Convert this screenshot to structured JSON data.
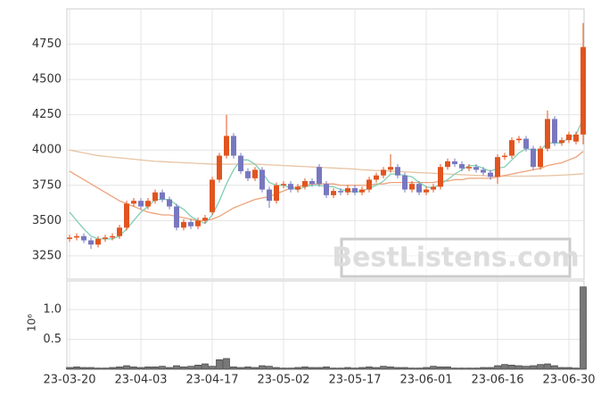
{
  "chart_data": [
    {
      "type": "candlestick",
      "watermark": "BestListens.com",
      "up_color": "#e2541f",
      "down_color": "#7878c0",
      "xlim": [
        -0.375,
        72.125
      ],
      "ylim": [
        3085,
        5000
      ],
      "yticks": [
        3250,
        3500,
        3750,
        4000,
        4250,
        4500,
        4750
      ],
      "grid": true,
      "open": [
        3370,
        3380,
        3390,
        3360,
        3330,
        3370,
        3380,
        3390,
        3450,
        3620,
        3640,
        3600,
        3640,
        3700,
        3650,
        3600,
        3450,
        3490,
        3460,
        3500,
        3560,
        3790,
        3960,
        4100,
        3960,
        3850,
        3800,
        3860,
        3720,
        3640,
        3750,
        3760,
        3720,
        3740,
        3780,
        3880,
        3760,
        3680,
        3710,
        3700,
        3730,
        3700,
        3720,
        3790,
        3820,
        3860,
        3880,
        3820,
        3720,
        3760,
        3700,
        3720,
        3740,
        3880,
        3920,
        3900,
        3870,
        3880,
        3860,
        3840,
        3810,
        3950,
        3960,
        4070,
        4080,
        4010,
        3880,
        4010,
        4220,
        4050,
        4070,
        4060,
        4110
      ],
      "high": [
        3400,
        3410,
        3410,
        3380,
        3390,
        3400,
        3410,
        3470,
        3640,
        3660,
        3660,
        3660,
        3720,
        3720,
        3670,
        3620,
        3510,
        3510,
        3520,
        3540,
        3810,
        3980,
        4250,
        4120,
        3980,
        3870,
        3880,
        3880,
        3740,
        3770,
        3780,
        3780,
        3760,
        3800,
        3800,
        3900,
        3780,
        3730,
        3730,
        3750,
        3750,
        3740,
        3810,
        3840,
        3880,
        3970,
        3900,
        3840,
        3780,
        3780,
        3740,
        3760,
        3900,
        3940,
        3940,
        3920,
        3900,
        3900,
        3880,
        3860,
        3970,
        3980,
        4090,
        4100,
        4100,
        4030,
        4030,
        4280,
        4240,
        4090,
        4130,
        4130,
        4900
      ],
      "low": [
        3350,
        3360,
        3340,
        3300,
        3310,
        3350,
        3360,
        3370,
        3430,
        3600,
        3580,
        3580,
        3620,
        3630,
        3580,
        3430,
        3430,
        3440,
        3440,
        3480,
        3540,
        3770,
        3940,
        3940,
        3830,
        3780,
        3780,
        3700,
        3590,
        3620,
        3730,
        3700,
        3700,
        3720,
        3740,
        3740,
        3660,
        3660,
        3680,
        3680,
        3680,
        3680,
        3700,
        3770,
        3800,
        3840,
        3800,
        3700,
        3700,
        3680,
        3680,
        3700,
        3720,
        3860,
        3880,
        3850,
        3850,
        3840,
        3820,
        3790,
        3760,
        3930,
        3940,
        4050,
        3990,
        3860,
        3860,
        3990,
        4030,
        4030,
        4050,
        4040,
        4040
      ],
      "close": [
        3380,
        3390,
        3360,
        3330,
        3370,
        3380,
        3390,
        3450,
        3620,
        3640,
        3600,
        3640,
        3700,
        3650,
        3600,
        3450,
        3490,
        3460,
        3500,
        3520,
        3790,
        3960,
        4100,
        3960,
        3850,
        3800,
        3860,
        3720,
        3640,
        3750,
        3760,
        3720,
        3740,
        3780,
        3760,
        3760,
        3680,
        3710,
        3700,
        3730,
        3700,
        3720,
        3790,
        3820,
        3860,
        3880,
        3820,
        3720,
        3760,
        3700,
        3720,
        3740,
        3880,
        3920,
        3900,
        3870,
        3880,
        3860,
        3840,
        3810,
        3950,
        3960,
        4070,
        4080,
        4010,
        3880,
        4010,
        4220,
        4050,
        4070,
        4110,
        4110,
        4730
      ],
      "series": [
        {
          "color": "#e8c4a4",
          "values": [
            4000,
            3990,
            3980,
            3970,
            3960,
            3955,
            3950,
            3945,
            3940,
            3935,
            3930,
            3925,
            3920,
            3918,
            3915,
            3913,
            3910,
            3908,
            3905,
            3903,
            3900,
            3900,
            3900,
            3900,
            3900,
            3900,
            3900,
            3898,
            3895,
            3893,
            3890,
            3888,
            3885,
            3883,
            3880,
            3878,
            3875,
            3873,
            3870,
            3868,
            3865,
            3860,
            3858,
            3855,
            3853,
            3850,
            3848,
            3845,
            3843,
            3840,
            3838,
            3835,
            3833,
            3830,
            3828,
            3825,
            3823,
            3820,
            3818,
            3816,
            3815,
            3815,
            3815,
            3815,
            3815,
            3816,
            3817,
            3818,
            3820,
            3822,
            3825,
            3828,
            3832
          ]
        },
        {
          "color": "#eea27a",
          "values": [
            3850,
            3820,
            3790,
            3760,
            3730,
            3700,
            3670,
            3640,
            3620,
            3600,
            3580,
            3560,
            3550,
            3540,
            3540,
            3530,
            3520,
            3510,
            3500,
            3500,
            3510,
            3530,
            3560,
            3590,
            3610,
            3630,
            3650,
            3660,
            3670,
            3690,
            3710,
            3730,
            3740,
            3750,
            3760,
            3760,
            3760,
            3760,
            3750,
            3750,
            3750,
            3750,
            3750,
            3760,
            3760,
            3770,
            3770,
            3770,
            3770,
            3770,
            3770,
            3770,
            3780,
            3780,
            3790,
            3790,
            3800,
            3800,
            3800,
            3800,
            3810,
            3820,
            3830,
            3840,
            3850,
            3860,
            3870,
            3890,
            3900,
            3910,
            3930,
            3950,
            3990
          ]
        },
        {
          "color": "#7fcfb4",
          "values": [
            3560,
            3500,
            3440,
            3390,
            3370,
            3370,
            3370,
            3390,
            3440,
            3500,
            3560,
            3600,
            3650,
            3650,
            3650,
            3610,
            3580,
            3530,
            3500,
            3480,
            3540,
            3640,
            3760,
            3860,
            3930,
            3930,
            3900,
            3840,
            3770,
            3750,
            3750,
            3730,
            3720,
            3740,
            3750,
            3750,
            3740,
            3740,
            3720,
            3710,
            3700,
            3710,
            3730,
            3750,
            3780,
            3830,
            3830,
            3820,
            3810,
            3770,
            3740,
            3730,
            3760,
            3790,
            3830,
            3860,
            3890,
            3890,
            3870,
            3850,
            3870,
            3880,
            3930,
            3980,
            4010,
            4000,
            4000,
            4050,
            4050,
            4050,
            4090,
            4110,
            4220
          ]
        }
      ]
    },
    {
      "type": "bar",
      "ylabel": "10⁶",
      "color": "#777777",
      "xlim": [
        -0.375,
        72.125
      ],
      "xticks": [
        {
          "value": 0,
          "label": "23-03-20"
        },
        {
          "value": 10,
          "label": "23-04-03"
        },
        {
          "value": 20,
          "label": "23-04-17"
        },
        {
          "value": 30,
          "label": "23-05-02"
        },
        {
          "value": 40,
          "label": "23-05-17"
        },
        {
          "value": 50,
          "label": "23-06-01"
        },
        {
          "value": 60,
          "label": "23-06-16"
        },
        {
          "value": 70,
          "label": "23-06-30"
        }
      ],
      "ylim": [
        0,
        1.48
      ],
      "yticks": [
        0.5,
        {
          "value": 1,
          "label": "1.0"
        }
      ],
      "grid": true,
      "values": [
        0.03,
        0.04,
        0.03,
        0.03,
        0.02,
        0.02,
        0.03,
        0.04,
        0.06,
        0.04,
        0.03,
        0.04,
        0.04,
        0.05,
        0.03,
        0.06,
        0.04,
        0.05,
        0.07,
        0.09,
        0.05,
        0.16,
        0.18,
        0.04,
        0.03,
        0.04,
        0.03,
        0.06,
        0.05,
        0.03,
        0.02,
        0.02,
        0.03,
        0.04,
        0.03,
        0.03,
        0.04,
        0.02,
        0.02,
        0.03,
        0.02,
        0.03,
        0.04,
        0.03,
        0.05,
        0.04,
        0.03,
        0.03,
        0.02,
        0.02,
        0.03,
        0.05,
        0.04,
        0.04,
        0.02,
        0.02,
        0.02,
        0.02,
        0.03,
        0.03,
        0.06,
        0.08,
        0.07,
        0.06,
        0.05,
        0.06,
        0.08,
        0.09,
        0.06,
        0.03,
        0.03,
        0.02,
        1.38
      ]
    }
  ]
}
